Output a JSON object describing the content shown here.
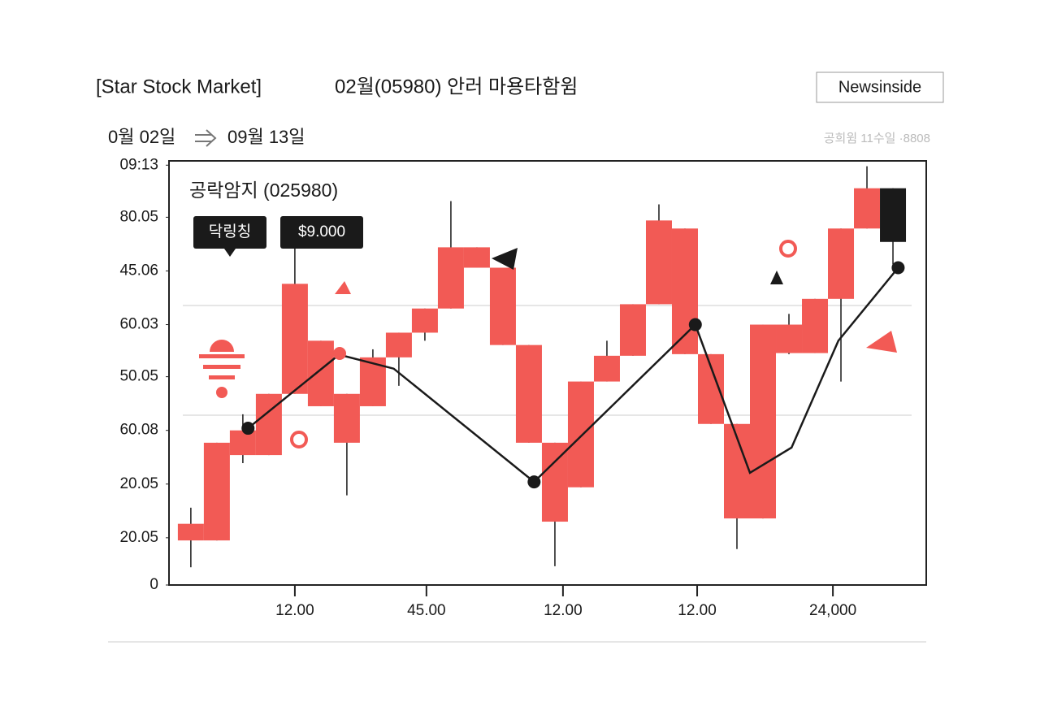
{
  "header": {
    "title": "[Star Stock Market]",
    "subtitle": "02월(05980) 안러 마용타함윔",
    "button": "Newsinside",
    "date_from": "0월 02일",
    "date_to": "09월 13일",
    "note": "공희윔 11수일 ·8808"
  },
  "chart_data": {
    "type": "candlestick",
    "label": "공락암지 (025980)",
    "annotations": [
      "닥링칭",
      "$9.000"
    ],
    "x": [
      0,
      1,
      2,
      3,
      4,
      5,
      6,
      7,
      8,
      9,
      10,
      11,
      12,
      13,
      14,
      15,
      16,
      17,
      18,
      19,
      20,
      21,
      22,
      23,
      24,
      25,
      26,
      27
    ],
    "open": [
      0.83,
      0.83,
      2.42,
      2.42,
      3.56,
      4.55,
      3.56,
      3.33,
      4.24,
      4.7,
      5.15,
      6.29,
      5.91,
      4.47,
      2.65,
      1.82,
      3.79,
      4.27,
      5.23,
      6.64,
      4.3,
      3.0,
      1.24,
      4.85,
      4.32,
      5.33,
      6.64,
      7.39
    ],
    "close": [
      1.14,
      2.65,
      2.88,
      3.56,
      5.61,
      3.33,
      2.65,
      4.24,
      4.7,
      5.15,
      6.29,
      5.91,
      4.47,
      2.65,
      1.18,
      3.79,
      4.27,
      5.23,
      6.79,
      4.3,
      3.0,
      1.24,
      4.85,
      4.32,
      5.33,
      6.64,
      7.39,
      6.39
    ],
    "high": [
      1.44,
      2.65,
      3.18,
      3.56,
      6.29,
      4.55,
      3.56,
      4.39,
      4.7,
      5.15,
      7.15,
      6.29,
      5.91,
      4.47,
      2.65,
      3.79,
      4.55,
      5.23,
      7.09,
      6.64,
      4.3,
      3.0,
      4.85,
      5.05,
      5.33,
      6.64,
      7.8,
      7.39
    ],
    "low": [
      0.33,
      0.83,
      2.27,
      2.42,
      3.56,
      3.33,
      1.67,
      3.33,
      3.71,
      4.55,
      5.15,
      5.91,
      4.47,
      2.65,
      0.35,
      1.82,
      3.79,
      4.27,
      5.23,
      4.3,
      3.0,
      0.67,
      1.24,
      4.3,
      4.32,
      3.79,
      6.64,
      5.97
    ],
    "colors": [
      "#f25a55",
      "#f25a55",
      "#f25a55",
      "#f25a55",
      "#f25a55",
      "#f25a55",
      "#f25a55",
      "#f25a55",
      "#f25a55",
      "#f25a55",
      "#f25a55",
      "#f25a55",
      "#f25a55",
      "#f25a55",
      "#f25a55",
      "#f25a55",
      "#f25a55",
      "#f25a55",
      "#f25a55",
      "#f25a55",
      "#f25a55",
      "#f25a55",
      "#f25a55",
      "#f25a55",
      "#f25a55",
      "#f25a55",
      "#f25a55",
      "#1a1a1a"
    ],
    "line": {
      "color": "#1a1a1a",
      "x": [
        2.2,
        5.7,
        7.8,
        13.2,
        19.4,
        21.5,
        23.1,
        24.9,
        27.2
      ],
      "values": [
        2.92,
        4.29,
        4.03,
        1.92,
        4.85,
        2.09,
        2.56,
        4.55,
        5.91
      ]
    },
    "points": {
      "color": "#1a1a1a",
      "x": [
        2.2,
        13.2,
        19.4,
        27.2
      ],
      "values": [
        2.92,
        1.92,
        4.85,
        5.91
      ]
    },
    "xlim": [
      -0.84,
      28.28
    ],
    "xticks": [
      {
        "value": 4,
        "label": "12.00"
      },
      {
        "value": 9.06,
        "label": "45.00"
      },
      {
        "value": 14.31,
        "label": "12.00"
      },
      {
        "value": 19.47,
        "label": "12.00"
      },
      {
        "value": 24.69,
        "label": "24,000"
      }
    ],
    "ylim": [
      0,
      7.9
    ],
    "yticks": [
      0,
      {
        "value": 0.88,
        "label": "20.05"
      },
      {
        "value": 1.88,
        "label": "20.05"
      },
      {
        "value": 2.88,
        "label": "60.08"
      },
      {
        "value": 3.88,
        "label": "50.05"
      },
      {
        "value": 4.85,
        "label": "60.03"
      },
      {
        "value": 5.85,
        "label": "45.06"
      },
      {
        "value": 6.85,
        "label": "80.05"
      },
      {
        "value": 7.82,
        "label": "09:13"
      }
    ]
  }
}
